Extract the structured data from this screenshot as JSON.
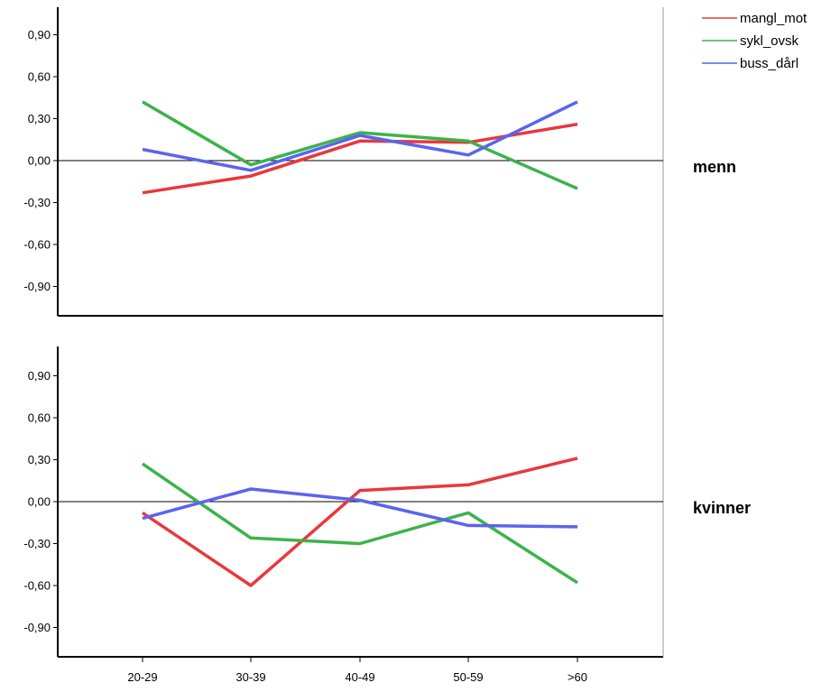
{
  "chart_data": {
    "type": "line",
    "categories": [
      "20-29",
      "30-39",
      "40-49",
      "50-59",
      ">60"
    ],
    "y_ticks": [
      "0,90",
      "0,60",
      "0,30",
      "0,00",
      "-0,30",
      "-0,60",
      "-0,90"
    ],
    "ylim": [
      -1.1,
      1.1
    ],
    "legend_position": "top-right",
    "series_styles": [
      {
        "name": "mangl_mot",
        "color": "#e8383d"
      },
      {
        "name": "sykl_ovsk",
        "color": "#3cb34a"
      },
      {
        "name": "buss_dårl",
        "color": "#5a64f0"
      }
    ],
    "panels": [
      {
        "label": "menn",
        "series": [
          {
            "name": "mangl_mot",
            "values": [
              -0.23,
              -0.11,
              0.14,
              0.13,
              0.26
            ]
          },
          {
            "name": "sykl_ovsk",
            "values": [
              0.42,
              -0.03,
              0.2,
              0.14,
              -0.2
            ]
          },
          {
            "name": "buss_dårl",
            "values": [
              0.08,
              -0.07,
              0.18,
              0.04,
              0.42
            ]
          }
        ]
      },
      {
        "label": "kvinner",
        "series": [
          {
            "name": "mangl_mot",
            "values": [
              -0.08,
              -0.6,
              0.08,
              0.12,
              0.31
            ]
          },
          {
            "name": "sykl_ovsk",
            "values": [
              0.27,
              -0.26,
              -0.3,
              -0.08,
              -0.58
            ]
          },
          {
            "name": "buss_dårl",
            "values": [
              -0.12,
              0.09,
              0.01,
              -0.17,
              -0.18
            ]
          }
        ]
      }
    ]
  }
}
